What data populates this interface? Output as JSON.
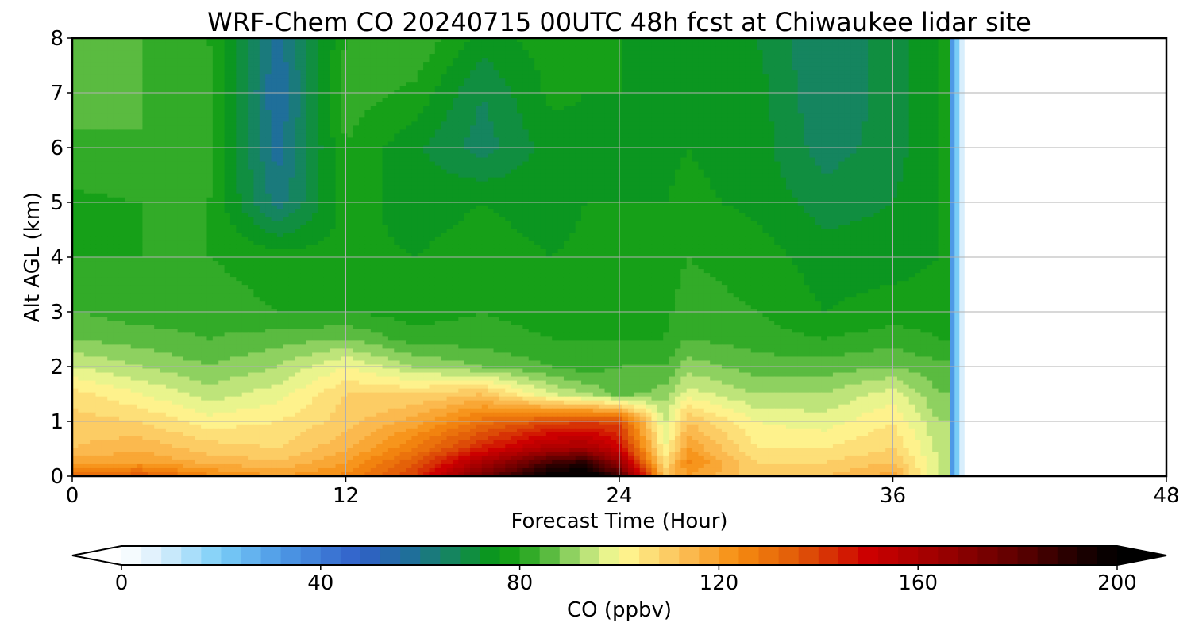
{
  "figure": {
    "title": "WRF-Chem CO  20240715 00UTC 48h fcst at Chiwaukee lidar site",
    "xlabel": "Forecast Time (Hour)",
    "ylabel": "Alt AGL (km)",
    "colorbar_label": "CO  (ppbv)"
  },
  "chart_data": {
    "type": "heatmap",
    "title": "WRF-Chem CO  20240715 00UTC 48h fcst at Chiwaukee lidar site",
    "xlabel": "Forecast Time (Hour)",
    "ylabel": "Alt AGL (km)",
    "xlim": [
      0,
      48
    ],
    "ylim": [
      0,
      8
    ],
    "x_ticks": [
      0,
      12,
      24,
      36,
      48
    ],
    "y_ticks": [
      0,
      1,
      2,
      3,
      4,
      5,
      6,
      7,
      8
    ],
    "grid": true,
    "data_end_hour": 38.5,
    "x": [
      0,
      3,
      6,
      9,
      12,
      15,
      18,
      21,
      22.5,
      24,
      26,
      27,
      30,
      33,
      36,
      38
    ],
    "y": [
      0,
      0.25,
      0.5,
      1.0,
      1.5,
      2.0,
      2.5,
      3.0,
      4.0,
      5.0,
      6.0,
      7.0,
      8.0
    ],
    "z": [
      [
        130,
        135,
        125,
        120,
        125,
        140,
        175,
        200,
        205,
        185,
        112,
        120,
        110,
        112,
        118,
        95
      ],
      [
        118,
        120,
        115,
        112,
        120,
        135,
        160,
        185,
        190,
        165,
        105,
        125,
        108,
        108,
        112,
        95
      ],
      [
        112,
        115,
        110,
        108,
        115,
        128,
        145,
        160,
        162,
        150,
        100,
        120,
        104,
        104,
        108,
        95
      ],
      [
        110,
        108,
        102,
        104,
        110,
        118,
        130,
        138,
        140,
        138,
        95,
        112,
        100,
        98,
        104,
        92
      ],
      [
        106,
        100,
        94,
        98,
        108,
        108,
        112,
        96,
        92,
        86,
        90,
        98,
        92,
        92,
        98,
        88
      ],
      [
        96,
        92,
        88,
        92,
        100,
        92,
        88,
        84,
        82,
        84,
        84,
        90,
        86,
        86,
        88,
        85
      ],
      [
        88,
        86,
        84,
        86,
        88,
        82,
        82,
        80,
        80,
        80,
        80,
        84,
        82,
        80,
        82,
        80
      ],
      [
        84,
        82,
        82,
        80,
        80,
        78,
        80,
        78,
        78,
        78,
        79,
        82,
        80,
        76,
        78,
        78
      ],
      [
        80,
        80,
        80,
        78,
        77,
        76,
        78,
        76,
        77,
        78,
        78,
        80,
        78,
        74,
        74,
        76
      ],
      [
        79,
        80,
        80,
        62,
        78,
        74,
        76,
        74,
        76,
        76,
        76,
        77,
        75,
        70,
        72,
        76
      ],
      [
        83,
        84,
        82,
        58,
        80,
        73,
        66,
        74,
        75,
        75,
        75,
        76,
        74,
        66,
        70,
        76
      ],
      [
        86,
        84,
        82,
        56,
        82,
        79,
        68,
        77,
        76,
        76,
        75,
        76,
        74,
        64,
        70,
        76
      ],
      [
        88,
        84,
        80,
        58,
        80,
        84,
        74,
        78,
        77,
        76,
        75,
        76,
        72,
        64,
        70,
        76
      ]
    ],
    "colorbar": {
      "label": "CO  (ppbv)",
      "range": [
        0,
        200
      ],
      "ticks": [
        0,
        40,
        80,
        120,
        160,
        200
      ],
      "extend": "both",
      "stops": [
        [
          0,
          "#ffffff"
        ],
        [
          8,
          "#d8eefc"
        ],
        [
          20,
          "#79cdf7"
        ],
        [
          32,
          "#4e99e6"
        ],
        [
          48,
          "#3060c8"
        ],
        [
          58,
          "#1f6f9a"
        ],
        [
          68,
          "#128a50"
        ],
        [
          76,
          "#089a10"
        ],
        [
          84,
          "#40b030"
        ],
        [
          92,
          "#a8dc70"
        ],
        [
          100,
          "#fefc96"
        ],
        [
          112,
          "#fcc25a"
        ],
        [
          124,
          "#f68c10"
        ],
        [
          136,
          "#e05808"
        ],
        [
          150,
          "#cc0000"
        ],
        [
          166,
          "#960000"
        ],
        [
          180,
          "#5e0000"
        ],
        [
          192,
          "#200000"
        ],
        [
          200,
          "#000000"
        ]
      ]
    }
  }
}
